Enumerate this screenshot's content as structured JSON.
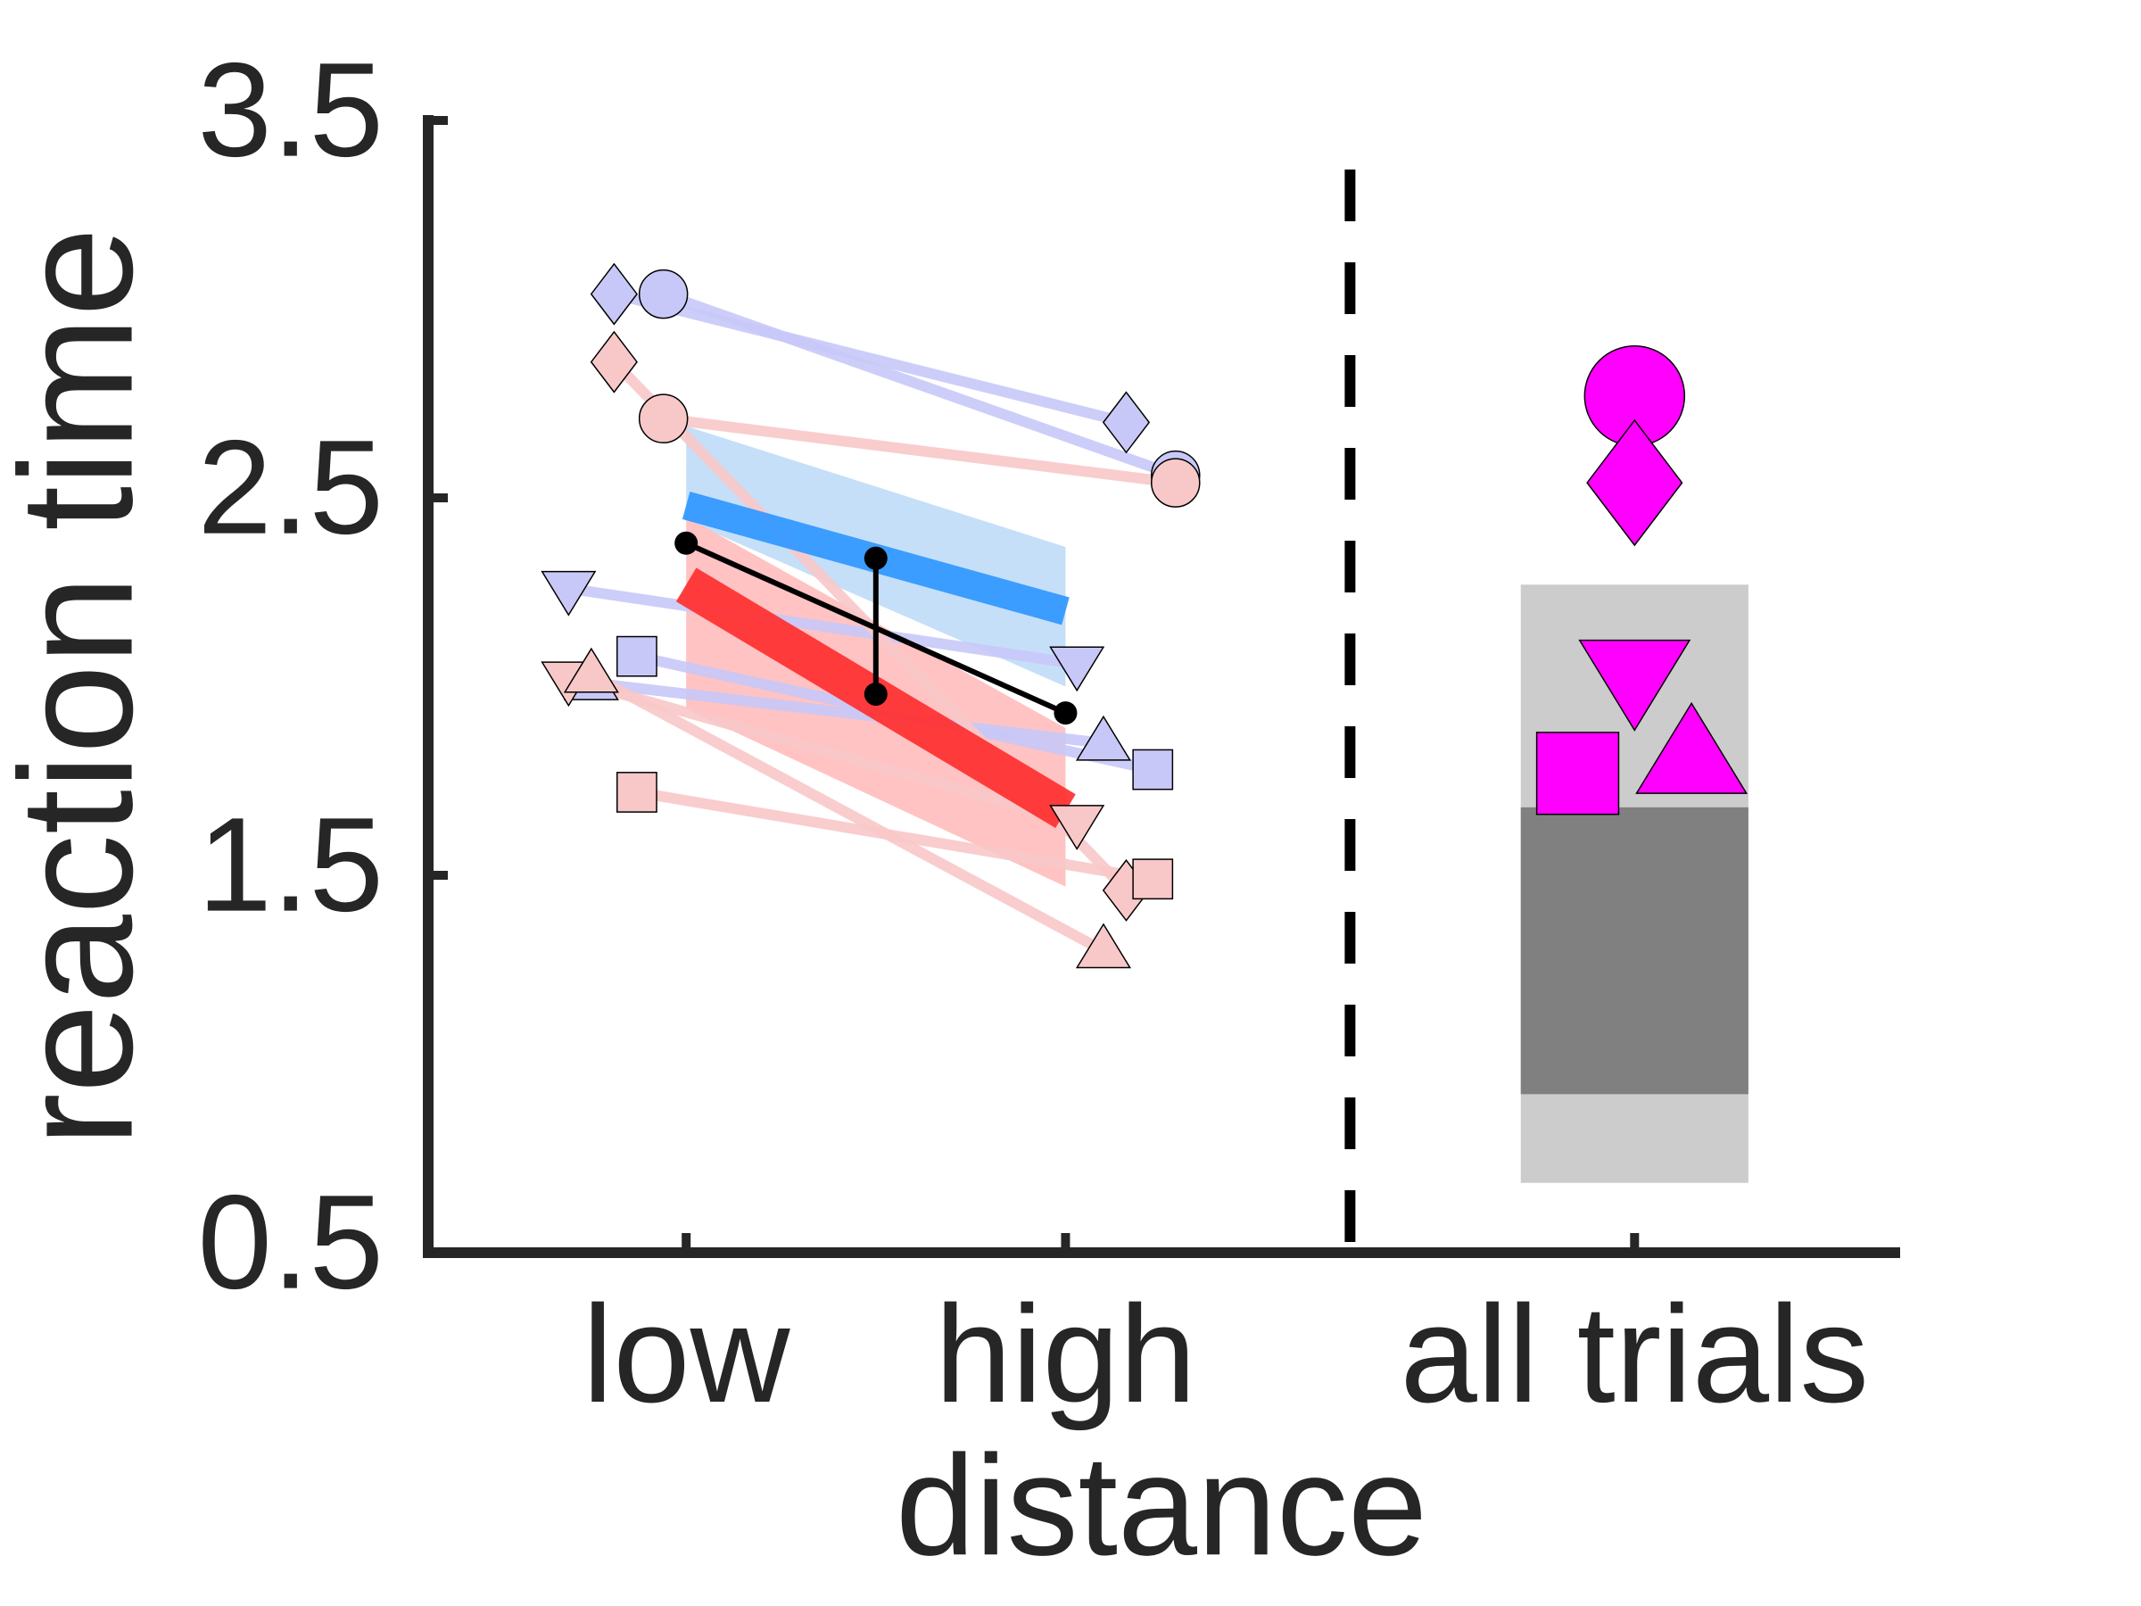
{
  "chart_data": {
    "type": "line",
    "ylabel": "reaction time",
    "xlabel": "distance",
    "ylim": [
      0.5,
      3.5
    ],
    "yticks": [
      0.5,
      1.5,
      2.5,
      3.5
    ],
    "xlim": [
      0.32,
      4.2
    ],
    "xticks": [
      {
        "value": 1,
        "label": "low"
      },
      {
        "value": 2,
        "label": "high"
      },
      {
        "value": 3.5,
        "label": "all trials"
      }
    ],
    "divider_x": 2.75,
    "series": [
      {
        "color": "#c8c8f8",
        "marker": "diamond",
        "x": [
          0.81,
          2.16
        ],
        "values": [
          3.04,
          2.7
        ]
      },
      {
        "color": "#c8c8f8",
        "marker": "circle",
        "x": [
          0.94,
          2.29
        ],
        "values": [
          3.04,
          2.56
        ]
      },
      {
        "color": "#c8c8f8",
        "marker": "triangle-down",
        "x": [
          0.69,
          2.03
        ],
        "values": [
          2.26,
          2.06
        ]
      },
      {
        "color": "#c8c8f8",
        "marker": "square",
        "x": [
          0.87,
          2.23
        ],
        "values": [
          2.08,
          1.78
        ]
      },
      {
        "color": "#c8c8f8",
        "marker": "triangle-up",
        "x": [
          0.75,
          2.1
        ],
        "values": [
          2.01,
          1.85
        ]
      },
      {
        "color": "#f8c8c8",
        "marker": "diamond",
        "x": [
          0.81,
          2.16
        ],
        "values": [
          2.86,
          1.46
        ]
      },
      {
        "color": "#f8c8c8",
        "marker": "circle",
        "x": [
          0.94,
          2.29
        ],
        "values": [
          2.71,
          2.54
        ]
      },
      {
        "color": "#f8c8c8",
        "marker": "triangle-down",
        "x": [
          0.69,
          2.03
        ],
        "values": [
          2.02,
          1.64
        ]
      },
      {
        "color": "#f8c8c8",
        "marker": "square",
        "x": [
          0.87,
          2.23
        ],
        "values": [
          1.72,
          1.49
        ]
      },
      {
        "color": "#f8c8c8",
        "marker": "triangle-up",
        "x": [
          0.75,
          2.1
        ],
        "values": [
          2.03,
          1.3
        ]
      }
    ],
    "groups": [
      {
        "color": "#3399ff",
        "band_color": "#bfdcf8",
        "x": [
          1,
          2
        ],
        "values": [
          2.48,
          2.2
        ],
        "band_upper": [
          2.69,
          2.37
        ],
        "band_lower": [
          2.44,
          2.0
        ]
      },
      {
        "color": "#ff3333",
        "band_color": "#ffbcbc",
        "x": [
          1,
          2
        ],
        "values": [
          2.27,
          1.67
        ],
        "band_upper": [
          2.45,
          1.89
        ],
        "band_lower": [
          1.94,
          1.47
        ]
      }
    ],
    "mean": {
      "color": "#000000",
      "x": [
        1,
        2
      ],
      "values": [
        2.38,
        1.93
      ]
    },
    "error_bar": {
      "x": 1.5,
      "value": 2.16,
      "error": 0.18
    },
    "summary": {
      "x": 3.5,
      "width": 0.6,
      "outer": [
        0.685,
        2.27
      ],
      "inner": [
        0.92,
        1.68
      ],
      "outer_color": "#cccccc",
      "inner_color": "#808080",
      "color": "#ff00ff",
      "markers": [
        {
          "marker": "circle",
          "x": 3.5,
          "value": 2.77
        },
        {
          "marker": "diamond",
          "x": 3.5,
          "value": 2.54
        },
        {
          "marker": "triangle-down",
          "x": 3.5,
          "value": 2.03
        },
        {
          "marker": "square",
          "x": 3.35,
          "value": 1.77
        },
        {
          "marker": "triangle-up",
          "x": 3.65,
          "value": 1.81
        }
      ]
    }
  }
}
